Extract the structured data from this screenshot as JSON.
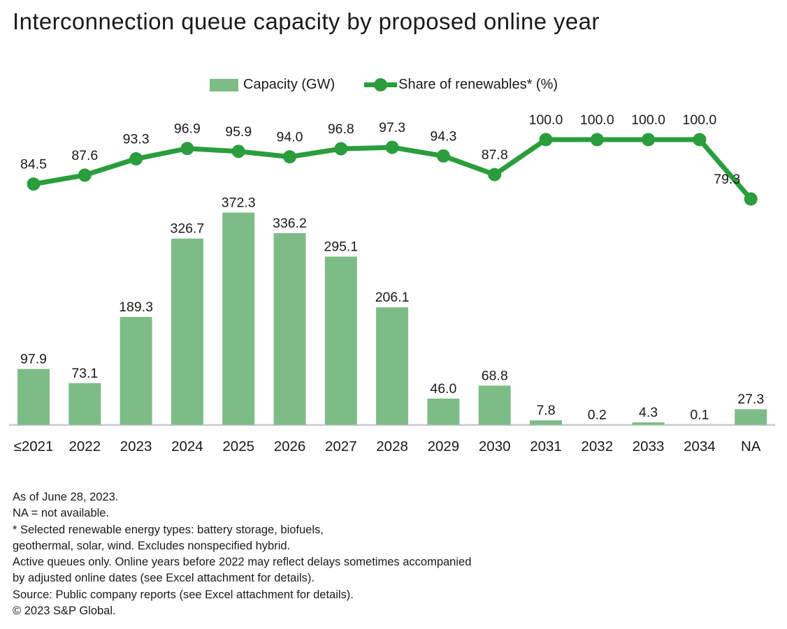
{
  "title": "Interconnection queue capacity by proposed online year",
  "legend": {
    "bar_label": "Capacity (GW)",
    "line_label": "Share of renewables* (%)"
  },
  "colors": {
    "bar": "#7ebc87",
    "line": "#2a9d3d",
    "axis": "#c8c8c8",
    "text": "#1a1a1a"
  },
  "chart_data": {
    "type": "bar",
    "subtype": "combo-bar-line",
    "title": "Interconnection queue capacity by proposed online year",
    "xlabel": "",
    "ylabel": "",
    "legend_position": "top-center",
    "gridlines": false,
    "axes_hidden": true,
    "data_labels": "one-decimal-on-every-point",
    "categories": [
      "≤2021",
      "2022",
      "2023",
      "2024",
      "2025",
      "2026",
      "2027",
      "2028",
      "2029",
      "2030",
      "2031",
      "2032",
      "2033",
      "2034",
      "NA"
    ],
    "series": [
      {
        "name": "Capacity (GW)",
        "type": "bar",
        "values": [
          97.9,
          73.1,
          189.3,
          326.7,
          372.3,
          336.2,
          295.1,
          206.1,
          46.0,
          68.8,
          7.8,
          0.2,
          4.3,
          0.1,
          27.3
        ]
      },
      {
        "name": "Share of renewables* (%)",
        "type": "line",
        "values": [
          84.5,
          87.6,
          93.3,
          96.9,
          95.9,
          94.0,
          96.8,
          97.3,
          94.3,
          87.8,
          100.0,
          100.0,
          100.0,
          100.0,
          79.3
        ]
      }
    ],
    "bar_value_range": [
      0,
      372.3
    ],
    "line_value_range": [
      79.3,
      100.0
    ]
  },
  "footnotes": [
    "As of June 28, 2023.",
    "NA = not available.",
    "* Selected renewable energy types: battery storage, biofuels,",
    "geothermal, solar, wind. Excludes nonspecified hybrid.",
    "Active queues only. Online years before 2022 may reflect delays sometimes accompanied",
    "by adjusted online dates (see Excel attachment for details).",
    "Source: Public company reports (see Excel attachment for details).",
    "© 2023 S&P Global."
  ]
}
